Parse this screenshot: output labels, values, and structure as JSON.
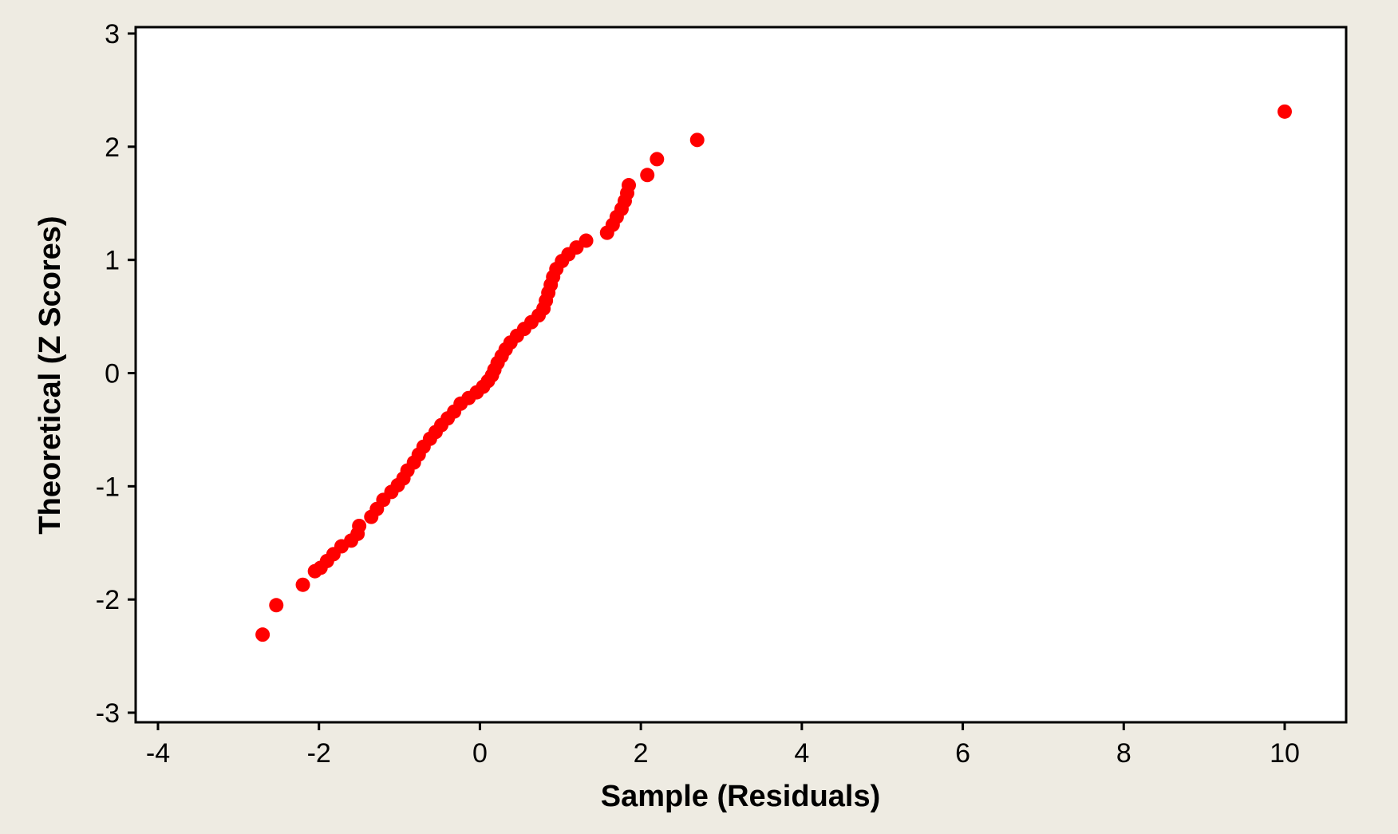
{
  "chart_data": {
    "type": "scatter",
    "title": "",
    "xlabel": "Sample (Residuals)",
    "ylabel": "Theoretical (Z Scores)",
    "xlim": [
      -4,
      11.5
    ],
    "ylim": [
      -3,
      3
    ],
    "xticks": [
      -4,
      -2,
      0,
      2,
      4,
      6,
      8,
      10
    ],
    "yticks": [
      -3,
      -2,
      -1,
      0,
      1,
      2,
      3
    ],
    "xtick_labels": [
      "-4",
      "-2",
      "0",
      "2",
      "4",
      "6",
      "8",
      "10"
    ],
    "ytick_labels": [
      "-3",
      "-2",
      "-1",
      "0",
      "1",
      "2",
      "3"
    ],
    "grid": false,
    "legend": "none",
    "point_color": "#ff0000",
    "plot_background": "#ffffff",
    "page_background": "#eeebe2",
    "series": [
      {
        "values": [
          [
            -2.7,
            -2.31
          ],
          [
            -2.53,
            -2.05
          ],
          [
            -2.2,
            -1.87
          ],
          [
            -2.05,
            -1.75
          ],
          [
            -1.98,
            -1.72
          ],
          [
            -1.9,
            -1.66
          ],
          [
            -1.82,
            -1.6
          ],
          [
            -1.72,
            -1.53
          ],
          [
            -1.6,
            -1.48
          ],
          [
            -1.52,
            -1.42
          ],
          [
            -1.5,
            -1.35
          ],
          [
            -1.35,
            -1.27
          ],
          [
            -1.28,
            -1.2
          ],
          [
            -1.2,
            -1.12
          ],
          [
            -1.1,
            -1.05
          ],
          [
            -1.02,
            -0.99
          ],
          [
            -0.95,
            -0.93
          ],
          [
            -0.9,
            -0.86
          ],
          [
            -0.82,
            -0.79
          ],
          [
            -0.76,
            -0.72
          ],
          [
            -0.7,
            -0.65
          ],
          [
            -0.62,
            -0.58
          ],
          [
            -0.55,
            -0.52
          ],
          [
            -0.48,
            -0.46
          ],
          [
            -0.4,
            -0.4
          ],
          [
            -0.32,
            -0.34
          ],
          [
            -0.24,
            -0.27
          ],
          [
            -0.14,
            -0.22
          ],
          [
            -0.04,
            -0.17
          ],
          [
            0.04,
            -0.12
          ],
          [
            0.1,
            -0.07
          ],
          [
            0.15,
            -0.02
          ],
          [
            0.18,
            0.03
          ],
          [
            0.22,
            0.09
          ],
          [
            0.27,
            0.15
          ],
          [
            0.32,
            0.21
          ],
          [
            0.38,
            0.27
          ],
          [
            0.46,
            0.33
          ],
          [
            0.55,
            0.39
          ],
          [
            0.64,
            0.45
          ],
          [
            0.73,
            0.51
          ],
          [
            0.79,
            0.57
          ],
          [
            0.82,
            0.64
          ],
          [
            0.85,
            0.71
          ],
          [
            0.88,
            0.78
          ],
          [
            0.91,
            0.85
          ],
          [
            0.95,
            0.92
          ],
          [
            1.02,
            0.99
          ],
          [
            1.1,
            1.05
          ],
          [
            1.2,
            1.11
          ],
          [
            1.32,
            1.17
          ],
          [
            1.58,
            1.24
          ],
          [
            1.65,
            1.31
          ],
          [
            1.7,
            1.38
          ],
          [
            1.76,
            1.45
          ],
          [
            1.8,
            1.52
          ],
          [
            1.83,
            1.59
          ],
          [
            1.85,
            1.66
          ],
          [
            2.08,
            1.75
          ],
          [
            2.2,
            1.89
          ],
          [
            2.7,
            2.06
          ],
          [
            10.0,
            2.31
          ]
        ]
      }
    ]
  }
}
